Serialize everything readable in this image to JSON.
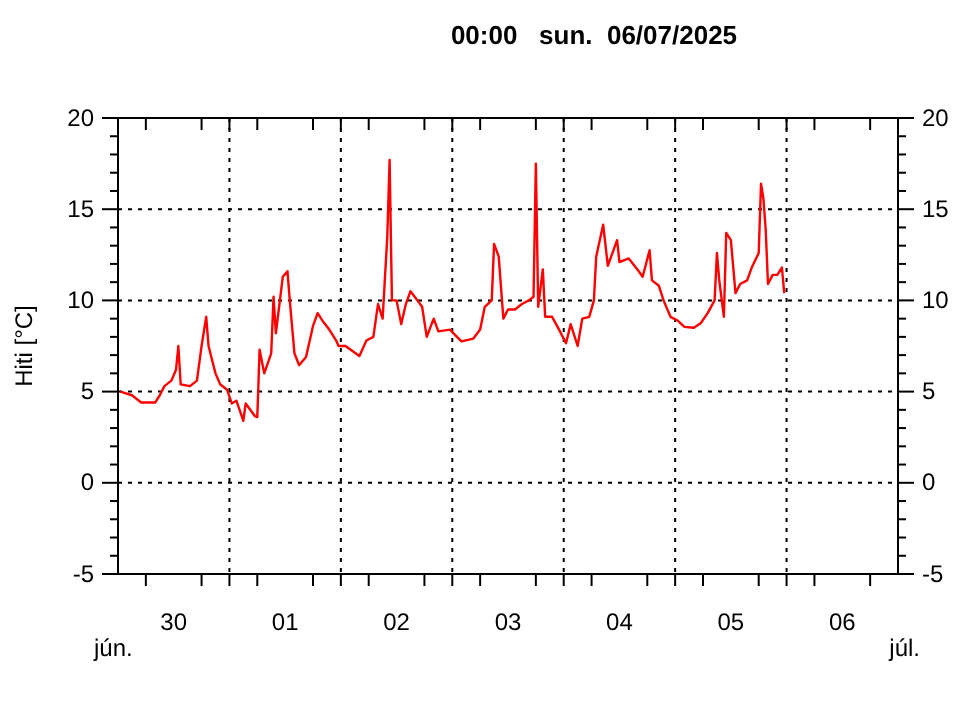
{
  "chart_data": {
    "type": "line",
    "title": "00:00   sun.  06/07/2025",
    "ylabel": "Hiti [°C]",
    "annotations": [
      "jún.",
      "júl."
    ],
    "xlim": [
      "2025-06-30T00:00",
      "2025-07-07T00:00"
    ],
    "xticks": [
      {
        "value": "2025-06-30T06:00",
        "label": null
      },
      {
        "value": "2025-06-30T12:00",
        "label": "30"
      },
      {
        "value": "2025-06-30T18:00",
        "label": null
      },
      {
        "value": "2025-07-01T00:00",
        "label": null
      },
      {
        "value": "2025-07-01T06:00",
        "label": null
      },
      {
        "value": "2025-07-01T12:00",
        "label": "01"
      },
      {
        "value": "2025-07-01T18:00",
        "label": null
      },
      {
        "value": "2025-07-02T00:00",
        "label": null
      },
      {
        "value": "2025-07-02T06:00",
        "label": null
      },
      {
        "value": "2025-07-02T12:00",
        "label": "02"
      },
      {
        "value": "2025-07-02T18:00",
        "label": null
      },
      {
        "value": "2025-07-03T00:00",
        "label": null
      },
      {
        "value": "2025-07-03T06:00",
        "label": null
      },
      {
        "value": "2025-07-03T12:00",
        "label": "03"
      },
      {
        "value": "2025-07-03T18:00",
        "label": null
      },
      {
        "value": "2025-07-04T00:00",
        "label": null
      },
      {
        "value": "2025-07-04T06:00",
        "label": null
      },
      {
        "value": "2025-07-04T12:00",
        "label": "04"
      },
      {
        "value": "2025-07-04T18:00",
        "label": null
      },
      {
        "value": "2025-07-05T00:00",
        "label": null
      },
      {
        "value": "2025-07-05T06:00",
        "label": null
      },
      {
        "value": "2025-07-05T12:00",
        "label": "05"
      },
      {
        "value": "2025-07-05T18:00",
        "label": null
      },
      {
        "value": "2025-07-06T00:00",
        "label": null
      },
      {
        "value": "2025-07-06T06:00",
        "label": null
      },
      {
        "value": "2025-07-06T12:00",
        "label": "06"
      },
      {
        "value": "2025-07-06T18:00",
        "label": null
      }
    ],
    "ylim": [
      -5,
      20
    ],
    "yticks": [
      -5,
      {
        "value": -4,
        "label": null
      },
      {
        "value": -3,
        "label": null
      },
      {
        "value": -2,
        "label": null
      },
      {
        "value": -1,
        "label": null
      },
      0,
      {
        "value": 1,
        "label": null
      },
      {
        "value": 2,
        "label": null
      },
      {
        "value": 3,
        "label": null
      },
      {
        "value": 4,
        "label": null
      },
      5,
      {
        "value": 6,
        "label": null
      },
      {
        "value": 7,
        "label": null
      },
      {
        "value": 8,
        "label": null
      },
      {
        "value": 9,
        "label": null
      },
      10,
      {
        "value": 11,
        "label": null
      },
      {
        "value": 12,
        "label": null
      },
      {
        "value": 13,
        "label": null
      },
      {
        "value": 14,
        "label": null
      },
      15,
      {
        "value": 16,
        "label": null
      },
      {
        "value": 17,
        "label": null
      },
      {
        "value": 18,
        "label": null
      },
      {
        "value": 19,
        "label": null
      },
      20
    ],
    "y2lim": [
      -5,
      20
    ],
    "y2ticks": [
      -5,
      {
        "value": -4,
        "label": null
      },
      {
        "value": -3,
        "label": null
      },
      {
        "value": -2,
        "label": null
      },
      {
        "value": -1,
        "label": null
      },
      0,
      {
        "value": 1,
        "label": null
      },
      {
        "value": 2,
        "label": null
      },
      {
        "value": 3,
        "label": null
      },
      {
        "value": 4,
        "label": null
      },
      5,
      {
        "value": 6,
        "label": null
      },
      {
        "value": 7,
        "label": null
      },
      {
        "value": 8,
        "label": null
      },
      {
        "value": 9,
        "label": null
      },
      10,
      {
        "value": 11,
        "label": null
      },
      {
        "value": 12,
        "label": null
      },
      {
        "value": 13,
        "label": null
      },
      {
        "value": 14,
        "label": null
      },
      15,
      {
        "value": 16,
        "label": null
      },
      {
        "value": 17,
        "label": null
      },
      {
        "value": 18,
        "label": null
      },
      {
        "value": 19,
        "label": null
      },
      20
    ],
    "grid": true,
    "line_style": "solid",
    "marker": "none",
    "x": [
      "2025-06-30T00:30",
      "2025-06-30T03:00",
      "2025-06-30T05:00",
      "2025-06-30T08:00",
      "2025-06-30T09:00",
      "2025-06-30T10:00",
      "2025-06-30T11:30",
      "2025-06-30T12:30",
      "2025-06-30T13:00",
      "2025-06-30T13:30",
      "2025-06-30T15:30",
      "2025-06-30T17:00",
      "2025-06-30T18:00",
      "2025-06-30T19:00",
      "2025-06-30T19:30",
      "2025-06-30T21:00",
      "2025-06-30T22:00",
      "2025-06-30T23:30",
      "2025-07-01T00:30",
      "2025-07-01T01:30",
      "2025-07-01T03:00",
      "2025-07-01T03:30",
      "2025-07-01T05:30",
      "2025-07-01T06:00",
      "2025-07-01T06:30",
      "2025-07-01T07:30",
      "2025-07-01T09:00",
      "2025-07-01T09:30",
      "2025-07-01T10:00",
      "2025-07-01T11:30",
      "2025-07-01T12:30",
      "2025-07-01T13:00",
      "2025-07-01T14:00",
      "2025-07-01T15:00",
      "2025-07-01T16:30",
      "2025-07-01T18:00",
      "2025-07-01T19:00",
      "2025-07-01T20:00",
      "2025-07-01T21:30",
      "2025-07-01T23:00",
      "2025-07-01T23:30",
      "2025-07-02T01:00",
      "2025-07-02T04:00",
      "2025-07-02T05:30",
      "2025-07-02T07:00",
      "2025-07-02T08:00",
      "2025-07-02T09:00",
      "2025-07-02T10:00",
      "2025-07-02T10:30",
      "2025-07-02T11:00",
      "2025-07-02T12:00",
      "2025-07-02T13:00",
      "2025-07-02T14:00",
      "2025-07-02T15:00",
      "2025-07-02T16:30",
      "2025-07-02T17:30",
      "2025-07-02T18:30",
      "2025-07-02T20:00",
      "2025-07-02T21:00",
      "2025-07-02T23:30",
      "2025-07-03T01:00",
      "2025-07-03T02:00",
      "2025-07-03T04:30",
      "2025-07-03T06:00",
      "2025-07-03T07:00",
      "2025-07-03T08:30",
      "2025-07-03T09:00",
      "2025-07-03T10:00",
      "2025-07-03T11:00",
      "2025-07-03T12:00",
      "2025-07-03T13:30",
      "2025-07-03T15:00",
      "2025-07-03T16:30",
      "2025-07-03T17:30",
      "2025-07-03T18:00",
      "2025-07-03T18:30",
      "2025-07-03T19:30",
      "2025-07-03T20:00",
      "2025-07-03T21:30",
      "2025-07-03T23:00",
      "2025-07-04T00:30",
      "2025-07-04T01:30",
      "2025-07-04T03:00",
      "2025-07-04T04:00",
      "2025-07-04T05:30",
      "2025-07-04T06:30",
      "2025-07-04T07:00",
      "2025-07-04T08:30",
      "2025-07-04T09:30",
      "2025-07-04T11:30",
      "2025-07-04T12:00",
      "2025-07-04T14:00",
      "2025-07-04T16:00",
      "2025-07-04T17:00",
      "2025-07-04T18:30",
      "2025-07-04T19:00",
      "2025-07-04T20:30",
      "2025-07-04T21:30",
      "2025-07-04T23:00",
      "2025-07-05T00:30",
      "2025-07-05T02:00",
      "2025-07-05T04:00",
      "2025-07-05T05:30",
      "2025-07-05T07:00",
      "2025-07-05T08:30",
      "2025-07-05T09:00",
      "2025-07-05T09:30",
      "2025-07-05T10:30",
      "2025-07-05T11:00",
      "2025-07-05T12:00",
      "2025-07-05T13:00",
      "2025-07-05T14:00",
      "2025-07-05T15:30",
      "2025-07-05T16:30",
      "2025-07-05T18:00",
      "2025-07-05T18:30",
      "2025-07-05T19:00",
      "2025-07-05T19:30",
      "2025-07-05T20:00",
      "2025-07-05T21:00",
      "2025-07-05T22:00",
      "2025-07-05T23:00",
      "2025-07-05T23:30"
    ],
    "series": [
      {
        "color": "#ff0000",
        "values": [
          5.0,
          4.8,
          4.4,
          4.4,
          4.8,
          5.3,
          5.6,
          6.2,
          7.5,
          5.4,
          5.3,
          5.6,
          7.5,
          9.1,
          7.5,
          6.0,
          5.4,
          5.1,
          4.35,
          4.5,
          3.4,
          4.35,
          3.65,
          3.6,
          7.3,
          6.0,
          7.1,
          10.2,
          8.2,
          11.3,
          11.6,
          10.0,
          7.1,
          6.45,
          6.9,
          8.6,
          9.3,
          8.9,
          8.4,
          7.8,
          7.5,
          7.5,
          6.95,
          7.8,
          8.0,
          9.8,
          9.0,
          13.5,
          17.7,
          10.0,
          10.0,
          8.7,
          9.8,
          10.5,
          10.0,
          9.65,
          8.0,
          9.0,
          8.3,
          8.4,
          8.0,
          7.75,
          7.9,
          8.4,
          9.65,
          10.0,
          13.1,
          12.4,
          9.0,
          9.5,
          9.5,
          9.8,
          10.0,
          10.2,
          17.5,
          9.65,
          11.7,
          9.1,
          9.1,
          8.4,
          7.65,
          8.7,
          7.5,
          9.0,
          9.1,
          10.0,
          12.4,
          14.15,
          11.9,
          13.3,
          12.1,
          12.3,
          11.65,
          11.3,
          12.75,
          11.1,
          10.8,
          10.0,
          9.1,
          8.9,
          8.55,
          8.5,
          8.75,
          9.3,
          10.0,
          12.6,
          11.1,
          9.1,
          13.7,
          13.3,
          10.4,
          10.9,
          11.1,
          11.8,
          12.6,
          16.4,
          15.6,
          13.9,
          10.9,
          11.4,
          11.4,
          11.8,
          10.4
        ]
      }
    ]
  }
}
